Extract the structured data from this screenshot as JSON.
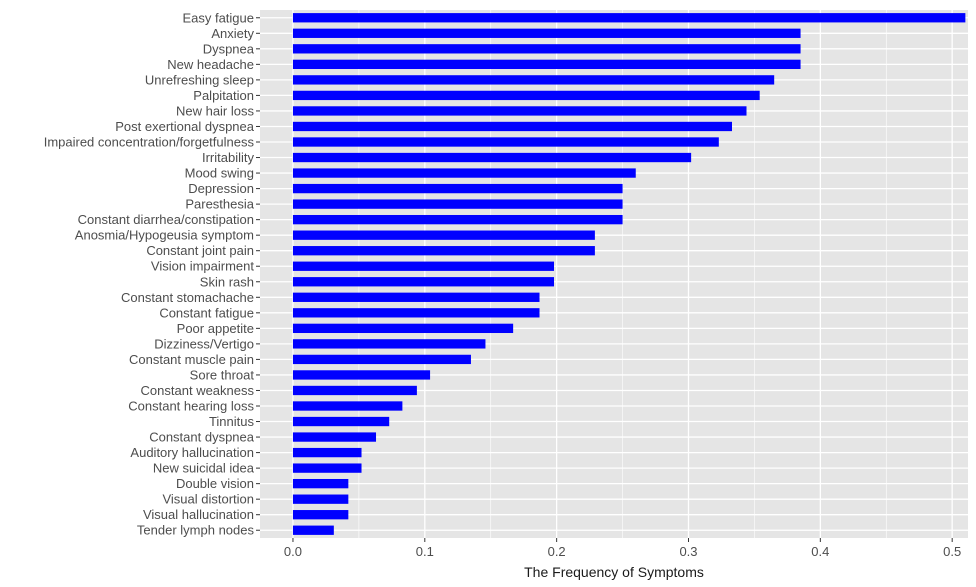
{
  "chart_data": {
    "type": "bar",
    "orientation": "horizontal",
    "title": "",
    "xlabel": "The Frequency of Symptoms",
    "ylabel": "",
    "xlim": [
      -0.025,
      0.512
    ],
    "x_ticks": [
      0.0,
      0.1,
      0.2,
      0.3,
      0.4,
      0.5
    ],
    "x_tick_labels": [
      "0.0",
      "0.1",
      "0.2",
      "0.3",
      "0.4",
      "0.5"
    ],
    "grid": true,
    "bar_color": "#0000ff",
    "panel_background": "#e5e5e5",
    "grid_color": "#ffffff",
    "categories": [
      "Easy fatigue",
      "Anxiety",
      "Dyspnea",
      "New headache",
      "Unrefreshing sleep",
      "Palpitation",
      "New hair loss",
      "Post exertional dyspnea",
      "Impaired concentration/forgetfulness",
      "Irritability",
      "Mood swing",
      "Depression",
      "Paresthesia",
      "Constant diarrhea/constipation",
      "Anosmia/Hypogeusia symptom",
      "Constant joint pain",
      "Vision impairment",
      "Skin rash",
      "Constant stomachache",
      "Constant fatigue",
      "Poor appetite",
      "Dizziness/Vertigo",
      "Constant muscle pain",
      "Sore throat",
      "Constant weakness",
      "Constant hearing loss",
      "Tinnitus",
      "Constant dyspnea",
      "Auditory hallucination",
      "New suicidal idea",
      "Double vision",
      "Visual distortion",
      "Visual hallucination",
      "Tender lymph nodes"
    ],
    "values": [
      0.51,
      0.385,
      0.385,
      0.385,
      0.365,
      0.354,
      0.344,
      0.333,
      0.323,
      0.302,
      0.26,
      0.25,
      0.25,
      0.25,
      0.229,
      0.229,
      0.198,
      0.198,
      0.187,
      0.187,
      0.167,
      0.146,
      0.135,
      0.104,
      0.094,
      0.083,
      0.073,
      0.063,
      0.052,
      0.052,
      0.042,
      0.042,
      0.042,
      0.031
    ]
  }
}
